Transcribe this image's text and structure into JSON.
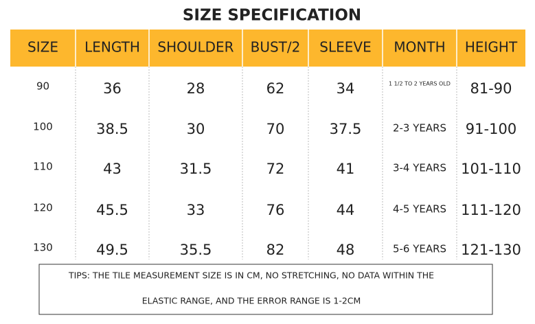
{
  "title": "SIZE SPECIFICATION",
  "table": {
    "headers": [
      "SIZE",
      "LENGTH",
      "SHOULDER",
      "BUST/2",
      "SLEEVE",
      "MONTH",
      "HEIGHT"
    ],
    "rows": [
      [
        "90",
        "36",
        "28",
        "62",
        "34",
        "1 1/2 TO 2 YEARS OLD",
        "81-90"
      ],
      [
        "100",
        "38.5",
        "30",
        "70",
        "37.5",
        "2-3 YEARS",
        "91-100"
      ],
      [
        "110",
        "43",
        "31.5",
        "72",
        "41",
        "3-4 YEARS",
        "101-110"
      ],
      [
        "120",
        "45.5",
        "33",
        "76",
        "44",
        "4-5 YEARS",
        "111-120"
      ],
      [
        "130",
        "49.5",
        "35.5",
        "82",
        "48",
        "5-6 YEARS",
        "121-130"
      ]
    ]
  },
  "tips": {
    "lines": [
      "TIPS: THE TILE MEASUREMENT SIZE IS IN CM, NO STRETCHING, NO DATA WITHIN THE",
      "ELASTIC RANGE, AND THE ERROR RANGE IS 1-2CM"
    ]
  }
}
